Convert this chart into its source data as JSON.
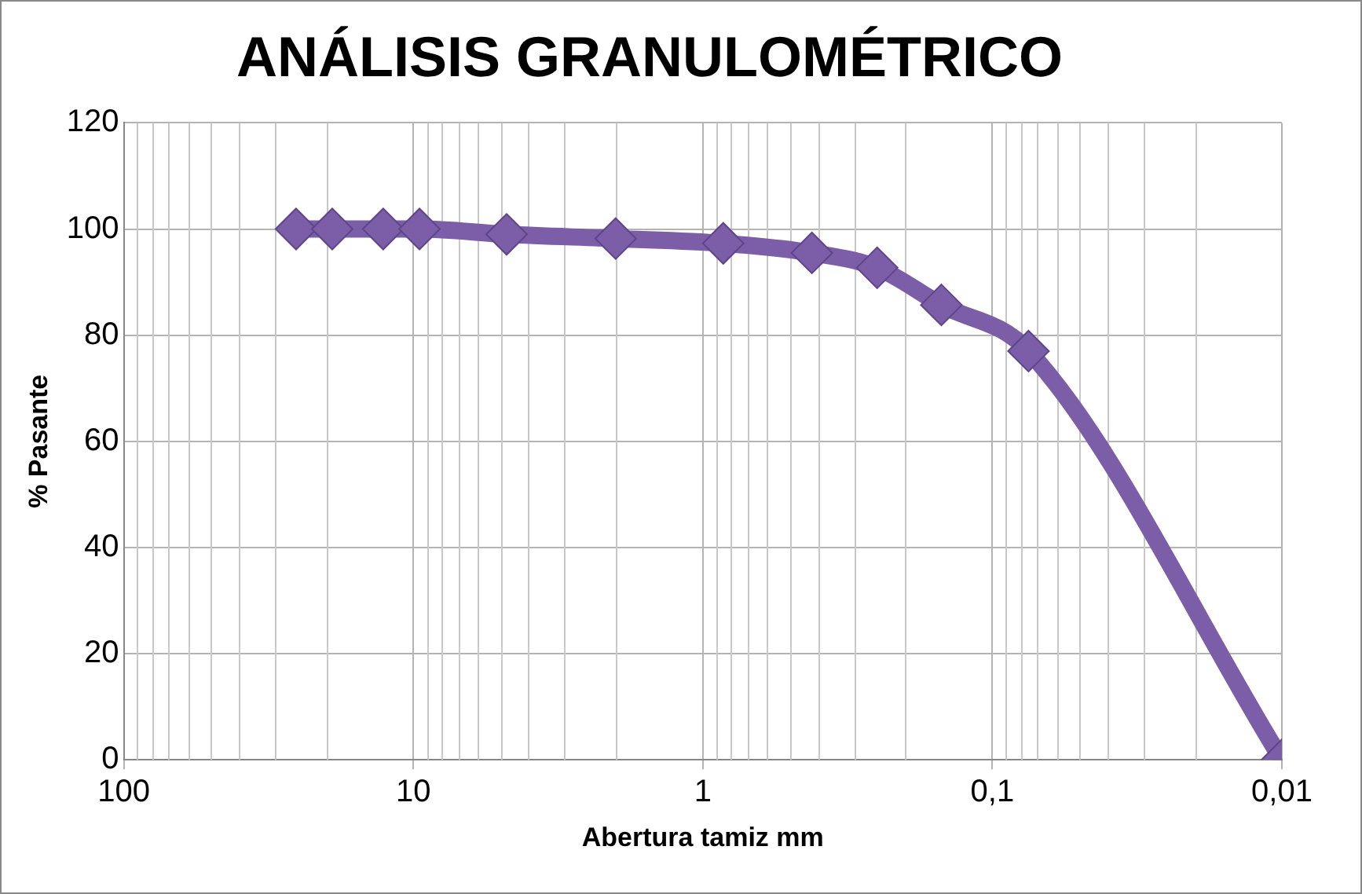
{
  "chart_data": {
    "type": "line",
    "title": "ANÁLISIS GRANULOMÉTRICO",
    "xlabel": "Abertura tamiz mm",
    "ylabel": "% Pasante",
    "x": [
      25.4,
      19.05,
      12.7,
      9.52,
      4.76,
      2.0,
      0.85,
      0.42,
      0.25,
      0.15,
      0.075,
      0.01
    ],
    "series": [
      {
        "color": "#7b5ea7",
        "values": [
          100,
          100,
          100,
          100,
          99,
          98.2,
          97.3,
          95.5,
          92.7,
          85.7,
          77,
          0
        ]
      }
    ],
    "log": "x",
    "xlim": [
      100,
      0.01
    ],
    "xticks": [
      100,
      10,
      1,
      {
        "value": 0.1,
        "label": "0,1"
      },
      {
        "value": 0.01,
        "label": "0,01"
      }
    ],
    "ylim": [
      0,
      120
    ],
    "yticks": [
      0,
      20,
      40,
      60,
      80,
      100,
      120
    ],
    "grid": true,
    "legend": false,
    "marker": "diamond",
    "line_style": "solid"
  }
}
